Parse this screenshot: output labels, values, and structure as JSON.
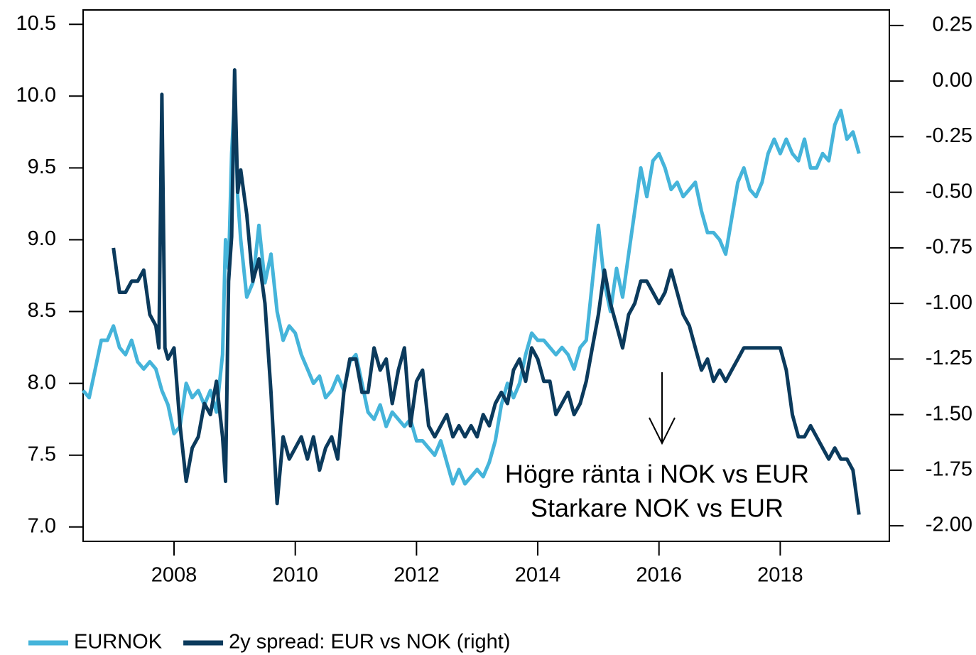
{
  "chart_data": {
    "type": "line",
    "xlim": [
      2006.5,
      2019.8
    ],
    "xticks": [
      2008,
      2010,
      2012,
      2014,
      2016,
      2018
    ],
    "ylim": [
      6.9,
      10.6
    ],
    "yticks": [
      {
        "value": 7.0,
        "label": "7.0"
      },
      7.5,
      {
        "value": 8.0,
        "label": "8.0"
      },
      8.5,
      {
        "value": 9.0,
        "label": "9.0"
      },
      9.5,
      {
        "value": 10.0,
        "label": "10.0"
      },
      10.5
    ],
    "y2lim": [
      -2.07,
      0.32
    ],
    "y2ticks": [
      {
        "value": -2.0,
        "label": "-2.00"
      },
      -1.75,
      {
        "value": -1.5,
        "label": "-1.50"
      },
      -1.25,
      {
        "value": -1.0,
        "label": "-1.00"
      },
      -0.75,
      {
        "value": -0.5,
        "label": "-0.50"
      },
      -0.25,
      {
        "value": 0,
        "label": "0.00"
      },
      0.25
    ],
    "annotations": [
      "Högre ränta i NOK vs EUR",
      "Starkare NOK vs EUR"
    ],
    "series": [
      {
        "name": "EURNOK",
        "color": "#45b4da",
        "x": [
          2006.5,
          2006.6,
          2006.7,
          2006.8,
          2006.9,
          2007.0,
          2007.1,
          2007.2,
          2007.3,
          2007.4,
          2007.5,
          2007.6,
          2007.7,
          2007.8,
          2007.9,
          2008.0,
          2008.1,
          2008.2,
          2008.3,
          2008.4,
          2008.5,
          2008.6,
          2008.7,
          2008.8,
          2008.85,
          2008.9,
          2008.95,
          2009.0,
          2009.05,
          2009.1,
          2009.2,
          2009.3,
          2009.4,
          2009.5,
          2009.6,
          2009.7,
          2009.8,
          2009.9,
          2010.0,
          2010.1,
          2010.2,
          2010.3,
          2010.4,
          2010.5,
          2010.6,
          2010.7,
          2010.8,
          2010.9,
          2011.0,
          2011.1,
          2011.2,
          2011.3,
          2011.4,
          2011.5,
          2011.6,
          2011.7,
          2011.8,
          2011.9,
          2012.0,
          2012.1,
          2012.2,
          2012.3,
          2012.4,
          2012.5,
          2012.6,
          2012.7,
          2012.8,
          2012.9,
          2013.0,
          2013.1,
          2013.2,
          2013.3,
          2013.4,
          2013.5,
          2013.6,
          2013.7,
          2013.8,
          2013.9,
          2014.0,
          2014.1,
          2014.2,
          2014.3,
          2014.4,
          2014.5,
          2014.6,
          2014.7,
          2014.8,
          2014.9,
          2015.0,
          2015.1,
          2015.2,
          2015.3,
          2015.4,
          2015.5,
          2015.6,
          2015.7,
          2015.8,
          2015.9,
          2016.0,
          2016.1,
          2016.2,
          2016.3,
          2016.4,
          2016.5,
          2016.6,
          2016.7,
          2016.8,
          2016.9,
          2017.0,
          2017.1,
          2017.2,
          2017.3,
          2017.4,
          2017.5,
          2017.6,
          2017.7,
          2017.8,
          2017.9,
          2018.0,
          2018.1,
          2018.2,
          2018.3,
          2018.4,
          2018.5,
          2018.6,
          2018.7,
          2018.8,
          2018.9,
          2019.0,
          2019.1,
          2019.2,
          2019.3
        ],
        "values": [
          7.95,
          7.9,
          8.1,
          8.3,
          8.3,
          8.4,
          8.25,
          8.2,
          8.3,
          8.15,
          8.1,
          8.15,
          8.1,
          7.95,
          7.85,
          7.65,
          7.7,
          8.0,
          7.9,
          7.95,
          7.85,
          7.95,
          7.8,
          8.2,
          9.0,
          8.8,
          9.6,
          10.0,
          9.3,
          9.0,
          8.6,
          8.7,
          9.1,
          8.7,
          8.9,
          8.5,
          8.3,
          8.4,
          8.35,
          8.2,
          8.1,
          8.0,
          8.05,
          7.9,
          7.95,
          8.05,
          7.95,
          8.15,
          8.2,
          8.0,
          7.8,
          7.75,
          7.85,
          7.7,
          7.8,
          7.75,
          7.7,
          7.75,
          7.6,
          7.6,
          7.55,
          7.5,
          7.6,
          7.45,
          7.3,
          7.4,
          7.3,
          7.35,
          7.4,
          7.35,
          7.45,
          7.6,
          7.85,
          8.0,
          7.9,
          8.0,
          8.2,
          8.35,
          8.3,
          8.3,
          8.25,
          8.2,
          8.25,
          8.2,
          8.1,
          8.25,
          8.3,
          8.7,
          9.1,
          8.7,
          8.5,
          8.8,
          8.6,
          8.9,
          9.2,
          9.5,
          9.3,
          9.55,
          9.6,
          9.5,
          9.35,
          9.4,
          9.3,
          9.35,
          9.4,
          9.2,
          9.05,
          9.05,
          9.0,
          8.9,
          9.15,
          9.4,
          9.5,
          9.35,
          9.3,
          9.4,
          9.6,
          9.7,
          9.6,
          9.7,
          9.6,
          9.55,
          9.7,
          9.5,
          9.5,
          9.6,
          9.55,
          9.8,
          9.9,
          9.7,
          9.75,
          9.6
        ]
      },
      {
        "name": "2y spread: EUR vs NOK (right)",
        "color": "#0b3a5c",
        "axis": "y2",
        "x": [
          2007.0,
          2007.1,
          2007.2,
          2007.3,
          2007.4,
          2007.5,
          2007.6,
          2007.7,
          2007.75,
          2007.8,
          2007.85,
          2007.9,
          2008.0,
          2008.1,
          2008.2,
          2008.3,
          2008.4,
          2008.5,
          2008.6,
          2008.7,
          2008.8,
          2008.85,
          2008.9,
          2008.95,
          2009.0,
          2009.05,
          2009.1,
          2009.2,
          2009.3,
          2009.4,
          2009.5,
          2009.6,
          2009.7,
          2009.8,
          2009.9,
          2010.0,
          2010.1,
          2010.2,
          2010.3,
          2010.4,
          2010.5,
          2010.6,
          2010.7,
          2010.8,
          2010.9,
          2011.0,
          2011.1,
          2011.2,
          2011.3,
          2011.4,
          2011.5,
          2011.6,
          2011.7,
          2011.8,
          2011.9,
          2012.0,
          2012.1,
          2012.2,
          2012.3,
          2012.4,
          2012.5,
          2012.6,
          2012.7,
          2012.8,
          2012.9,
          2013.0,
          2013.1,
          2013.2,
          2013.3,
          2013.4,
          2013.5,
          2013.6,
          2013.7,
          2013.8,
          2013.9,
          2014.0,
          2014.1,
          2014.2,
          2014.3,
          2014.4,
          2014.5,
          2014.6,
          2014.7,
          2014.8,
          2014.9,
          2015.0,
          2015.1,
          2015.2,
          2015.3,
          2015.4,
          2015.5,
          2015.6,
          2015.7,
          2015.8,
          2015.9,
          2016.0,
          2016.1,
          2016.2,
          2016.3,
          2016.4,
          2016.5,
          2016.6,
          2016.7,
          2016.8,
          2016.9,
          2017.0,
          2017.1,
          2017.2,
          2017.3,
          2017.4,
          2017.5,
          2017.6,
          2017.7,
          2017.8,
          2017.9,
          2018.0,
          2018.1,
          2018.2,
          2018.3,
          2018.4,
          2018.5,
          2018.6,
          2018.7,
          2018.8,
          2018.9,
          2019.0,
          2019.1,
          2019.2,
          2019.3
        ],
        "values": [
          -0.75,
          -0.95,
          -0.95,
          -0.9,
          -0.9,
          -0.85,
          -1.05,
          -1.1,
          -1.2,
          -0.06,
          -1.2,
          -1.25,
          -1.2,
          -1.55,
          -1.8,
          -1.65,
          -1.6,
          -1.45,
          -1.5,
          -1.35,
          -1.6,
          -1.8,
          -0.9,
          -0.7,
          0.05,
          -0.5,
          -0.4,
          -0.6,
          -0.9,
          -0.8,
          -1.0,
          -1.4,
          -1.9,
          -1.6,
          -1.7,
          -1.65,
          -1.6,
          -1.7,
          -1.6,
          -1.75,
          -1.65,
          -1.6,
          -1.7,
          -1.4,
          -1.25,
          -1.25,
          -1.4,
          -1.4,
          -1.2,
          -1.3,
          -1.25,
          -1.45,
          -1.3,
          -1.2,
          -1.55,
          -1.35,
          -1.3,
          -1.55,
          -1.6,
          -1.55,
          -1.5,
          -1.6,
          -1.55,
          -1.6,
          -1.55,
          -1.6,
          -1.5,
          -1.55,
          -1.45,
          -1.4,
          -1.45,
          -1.3,
          -1.25,
          -1.35,
          -1.2,
          -1.25,
          -1.35,
          -1.35,
          -1.5,
          -1.45,
          -1.4,
          -1.5,
          -1.45,
          -1.35,
          -1.2,
          -1.05,
          -0.85,
          -1.0,
          -1.1,
          -1.2,
          -1.05,
          -1.0,
          -0.9,
          -0.9,
          -0.95,
          -1.0,
          -0.95,
          -0.85,
          -0.95,
          -1.05,
          -1.1,
          -1.2,
          -1.3,
          -1.25,
          -1.35,
          -1.3,
          -1.35,
          -1.3,
          -1.25,
          -1.2,
          -1.2,
          -1.2,
          -1.2,
          -1.2,
          -1.2,
          -1.2,
          -1.3,
          -1.5,
          -1.6,
          -1.6,
          -1.55,
          -1.6,
          -1.65,
          -1.7,
          -1.65,
          -1.7,
          -1.7,
          -1.75,
          -1.95
        ]
      }
    ]
  }
}
